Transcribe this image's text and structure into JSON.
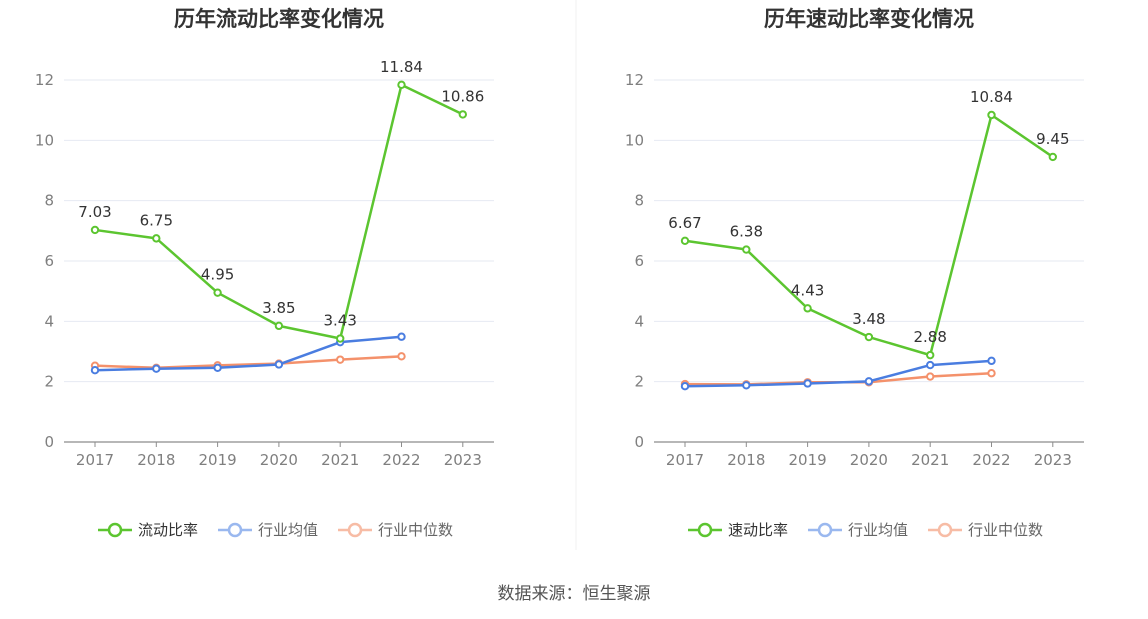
{
  "source_text": "数据来源：恒生聚源",
  "colors": {
    "main": "#5cc530",
    "avg": "#4a7de0",
    "median": "#f4916b",
    "avg_legend": "#9ab8ef",
    "median_legend": "#f7bca5",
    "grid": "#e6e9f2",
    "axis": "#8c8c8c"
  },
  "chart_data": [
    {
      "type": "line",
      "title": "历年流动比率变化情况",
      "categories": [
        "2017",
        "2018",
        "2019",
        "2020",
        "2021",
        "2022",
        "2023"
      ],
      "ylim": [
        0,
        12
      ],
      "yticks": [
        0,
        2,
        4,
        6,
        8,
        10,
        12
      ],
      "grid": true,
      "legend": "bottom",
      "series": [
        {
          "name": "流动比率",
          "values": [
            7.03,
            6.75,
            4.95,
            3.85,
            3.43,
            11.84,
            10.86
          ],
          "labeled": true
        },
        {
          "name": "行业均值",
          "values": [
            2.38,
            2.43,
            2.46,
            2.57,
            3.31,
            3.49,
            null
          ],
          "labeled": false
        },
        {
          "name": "行业中位数",
          "values": [
            2.53,
            2.46,
            2.54,
            2.6,
            2.73,
            2.84,
            null
          ],
          "labeled": false
        }
      ]
    },
    {
      "type": "line",
      "title": "历年速动比率变化情况",
      "categories": [
        "2017",
        "2018",
        "2019",
        "2020",
        "2021",
        "2022",
        "2023"
      ],
      "ylim": [
        0,
        12
      ],
      "yticks": [
        0,
        2,
        4,
        6,
        8,
        10,
        12
      ],
      "grid": true,
      "legend": "bottom",
      "series": [
        {
          "name": "速动比率",
          "values": [
            6.67,
            6.38,
            4.43,
            3.48,
            2.88,
            10.84,
            9.45
          ],
          "labeled": true
        },
        {
          "name": "行业均值",
          "values": [
            1.85,
            1.88,
            1.94,
            2.01,
            2.55,
            2.69,
            null
          ],
          "labeled": false
        },
        {
          "name": "行业中位数",
          "values": [
            1.92,
            1.91,
            1.98,
            1.98,
            2.17,
            2.28,
            null
          ],
          "labeled": false
        }
      ]
    }
  ]
}
